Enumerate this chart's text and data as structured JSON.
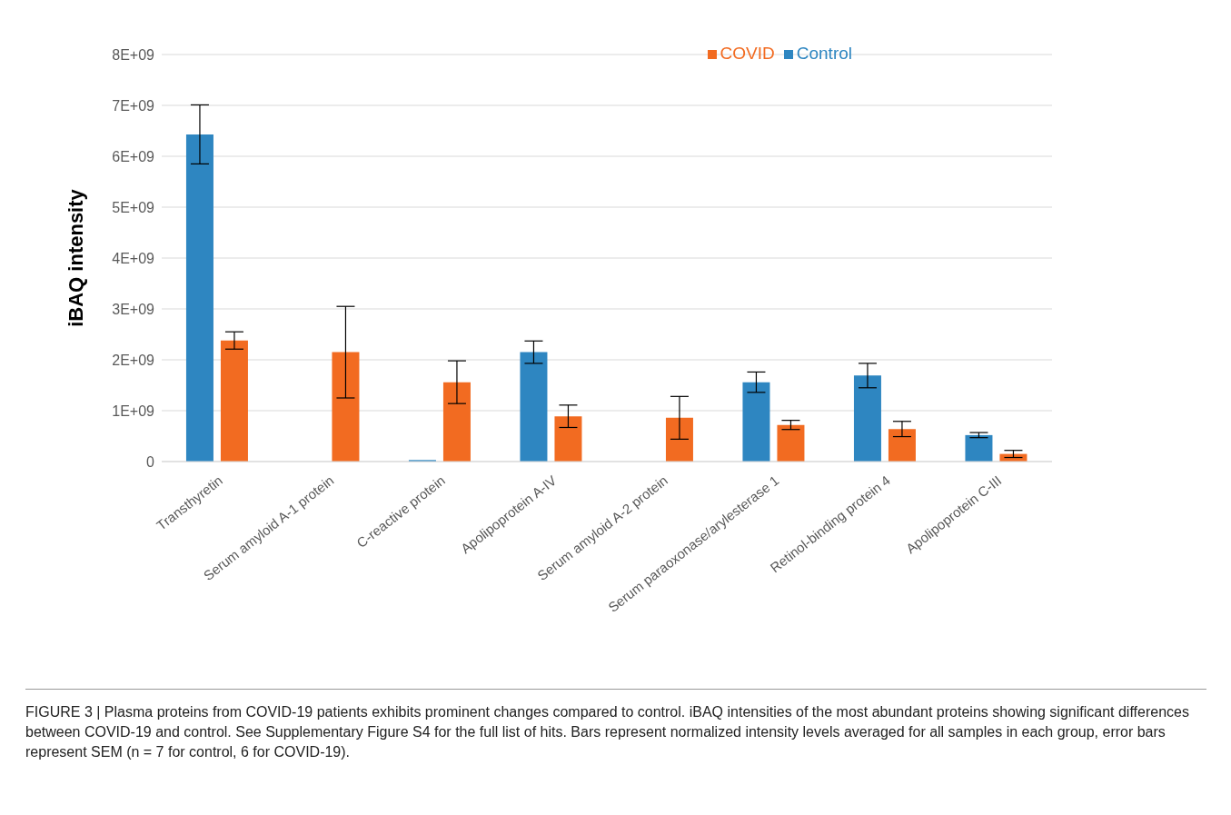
{
  "chart_data": {
    "type": "bar",
    "ylabel": "iBAQ intensity",
    "categories": [
      "Transthyretin",
      "Serum amyloid A-1 protein",
      "C-reactive protein",
      "Apolipoprotein A-IV",
      "Serum amyloid A-2 protein",
      "Serum paraoxonase/arylesterase 1",
      "Retinol-binding protein 4",
      "Apolipoprotein C-III"
    ],
    "series": [
      {
        "name": "Control",
        "color": "#2e86c1",
        "values": [
          6430000000.0,
          0,
          30000000.0,
          2150000000.0,
          0,
          1560000000.0,
          1690000000.0,
          520000000.0
        ],
        "errors": [
          580000000.0,
          null,
          null,
          220000000.0,
          null,
          200000000.0,
          240000000.0,
          50000000.0
        ]
      },
      {
        "name": "COVID",
        "color": "#f26b21",
        "values": [
          2380000000.0,
          2150000000.0,
          1560000000.0,
          890000000.0,
          860000000.0,
          720000000.0,
          640000000.0,
          150000000.0
        ],
        "errors": [
          170000000.0,
          900000000.0,
          420000000.0,
          220000000.0,
          420000000.0,
          90000000.0,
          150000000.0,
          70000000.0
        ]
      }
    ],
    "ylim": [
      0,
      8000000000.0
    ],
    "yticks": [
      0,
      {
        "value": 1000000000.0,
        "label": "1E+09"
      },
      {
        "value": 2000000000.0,
        "label": "2E+09"
      },
      {
        "value": 3000000000.0,
        "label": "3E+09"
      },
      {
        "value": 4000000000.0,
        "label": "4E+09"
      },
      {
        "value": 5000000000.0,
        "label": "5E+09"
      },
      {
        "value": 6000000000.0,
        "label": "6E+09"
      },
      {
        "value": 7000000000.0,
        "label": "7E+09"
      },
      {
        "value": 8000000000.0,
        "label": "8E+09"
      }
    ],
    "grid": "y",
    "legend": "top right",
    "annotations": [
      "FIGURE 3 | Plasma proteins from COVID-19 patients exhibits prominent changes compared to control. iBAQ intensities of the most abundant proteins showing significant differences between COVID-19 and control. See Supplementary Figure S4 for the full list of hits. Bars represent normalized intensity levels averaged for all samples in each group, error bars represent SEM (n = 7 for control, 6 for COVID-19)."
    ]
  }
}
